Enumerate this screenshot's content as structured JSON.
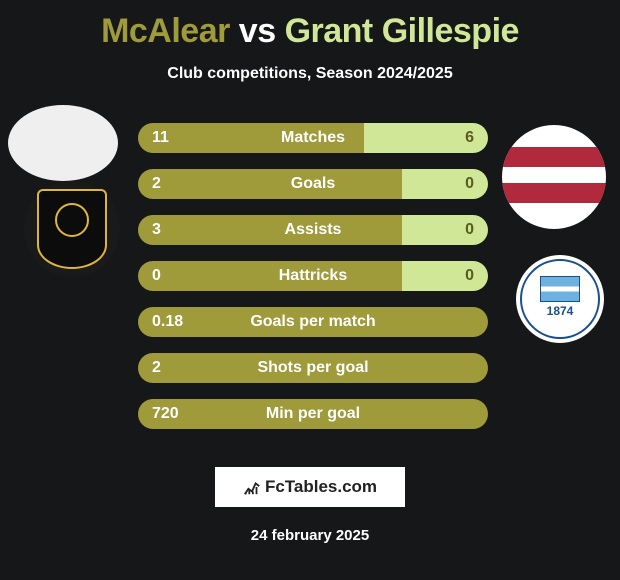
{
  "title": {
    "player1": "McAlear",
    "vs": "vs",
    "player2": "Grant Gillespie"
  },
  "subtitle": "Club competitions, Season 2024/2025",
  "colors": {
    "player1": "#9f9a3a",
    "player2": "#d0e797",
    "background": "#161719",
    "text_light": "#ffffff",
    "val2_text": "#5b5d20"
  },
  "club1": {
    "ring_color": "#e0b63a",
    "shield_bg": "#0c0c0c"
  },
  "club2": {
    "ring_color": "#184f8c",
    "year": "1874"
  },
  "bar_dimensions": {
    "total_width": 350,
    "height": 30,
    "gap": 16
  },
  "stats": [
    {
      "label": "Matches",
      "p1": "11",
      "p2": "6",
      "p1_w": 226,
      "p2_w": 124
    },
    {
      "label": "Goals",
      "p1": "2",
      "p2": "0",
      "p1_w": 264,
      "p2_w": 86
    },
    {
      "label": "Assists",
      "p1": "3",
      "p2": "0",
      "p1_w": 264,
      "p2_w": 86
    },
    {
      "label": "Hattricks",
      "p1": "0",
      "p2": "0",
      "p1_w": 264,
      "p2_w": 86
    },
    {
      "label": "Goals per match",
      "p1": "0.18",
      "p2": "",
      "p1_w": 350,
      "p2_w": 0
    },
    {
      "label": "Shots per goal",
      "p1": "2",
      "p2": "",
      "p1_w": 350,
      "p2_w": 0
    },
    {
      "label": "Min per goal",
      "p1": "720",
      "p2": "",
      "p1_w": 350,
      "p2_w": 0
    }
  ],
  "footer": {
    "site": "FcTables.com",
    "date": "24 february 2025"
  }
}
